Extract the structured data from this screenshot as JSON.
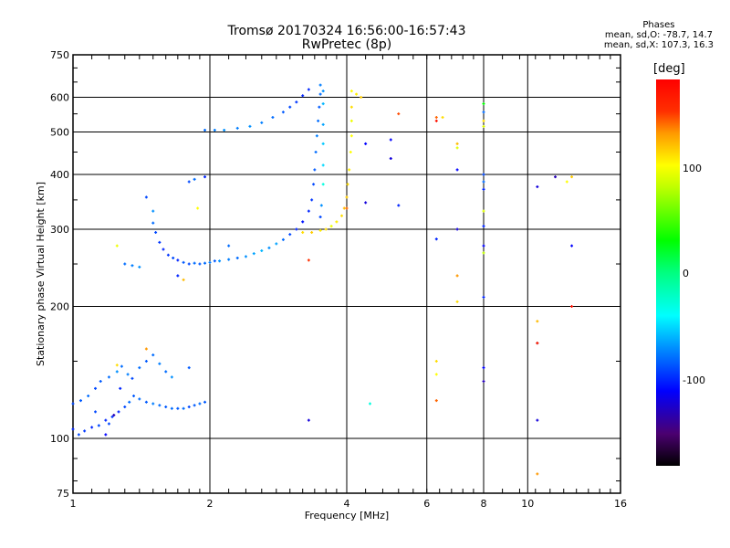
{
  "chart_data": {
    "type": "scatter",
    "title": "Tromsø 20170324 16:56:00-16:57:43",
    "subtitle": "RwPretec (8p)",
    "xlabel": "Frequency [MHz]",
    "ylabel": "Stationary phase Virtual Height [km]",
    "xscale": "log",
    "yscale": "log",
    "xlim": [
      1,
      16
    ],
    "ylim": [
      75,
      750
    ],
    "xticks": [
      "1",
      "2",
      "4",
      "6",
      "8",
      "10",
      "16"
    ],
    "xtick_values": [
      1,
      2,
      4,
      6,
      8,
      10,
      16
    ],
    "yticks": [
      "75",
      "100",
      "200",
      "300",
      "400",
      "500",
      "600",
      "750"
    ],
    "ytick_values": [
      75,
      100,
      200,
      300,
      400,
      500,
      600,
      750
    ],
    "grid": true,
    "colorbar": {
      "label": "[deg]",
      "range": [
        -180,
        180
      ],
      "ticks": [
        "100",
        "0",
        "-100"
      ],
      "tick_values": [
        100,
        0,
        -100
      ]
    },
    "legend_title": "Phases",
    "legend_lines": [
      "mean, sd,O: -78.7, 14.7",
      "mean, sd,X: 107.3, 16.3"
    ],
    "points_format": "[frequency MHz, virtual height km, phase deg]",
    "points": [
      [
        1.5,
        330,
        -70
      ],
      [
        1.5,
        310,
        -80
      ],
      [
        1.52,
        295,
        -90
      ],
      [
        1.55,
        280,
        -95
      ],
      [
        1.58,
        270,
        -100
      ],
      [
        1.62,
        262,
        -95
      ],
      [
        1.66,
        258,
        -90
      ],
      [
        1.7,
        255,
        -100
      ],
      [
        1.75,
        252,
        -85
      ],
      [
        1.8,
        250,
        -90
      ],
      [
        1.85,
        251,
        -80
      ],
      [
        1.9,
        250,
        -85
      ],
      [
        1.95,
        251,
        -80
      ],
      [
        2.0,
        252,
        -75
      ],
      [
        2.05,
        254,
        -85
      ],
      [
        2.1,
        254,
        -70
      ],
      [
        2.2,
        256,
        -75
      ],
      [
        2.3,
        258,
        -80
      ],
      [
        2.4,
        260,
        -70
      ],
      [
        2.5,
        264,
        -65
      ],
      [
        2.6,
        268,
        -60
      ],
      [
        2.7,
        272,
        -70
      ],
      [
        2.8,
        278,
        -65
      ],
      [
        2.9,
        284,
        -80
      ],
      [
        3.0,
        292,
        -90
      ],
      [
        3.1,
        300,
        -100
      ],
      [
        3.2,
        312,
        -105
      ],
      [
        3.3,
        330,
        -100
      ],
      [
        3.35,
        350,
        -95
      ],
      [
        3.38,
        380,
        -90
      ],
      [
        3.4,
        410,
        -85
      ],
      [
        3.42,
        450,
        -80
      ],
      [
        3.44,
        490,
        -75
      ],
      [
        3.46,
        530,
        -80
      ],
      [
        3.48,
        570,
        -85
      ],
      [
        3.5,
        610,
        -80
      ],
      [
        3.5,
        640,
        -75
      ],
      [
        3.55,
        620,
        -70
      ],
      [
        3.55,
        580,
        -60
      ],
      [
        3.55,
        520,
        -65
      ],
      [
        3.55,
        470,
        -55
      ],
      [
        3.55,
        420,
        -50
      ],
      [
        3.55,
        380,
        -30
      ],
      [
        3.52,
        340,
        -70
      ],
      [
        3.5,
        320,
        -90
      ],
      [
        1.3,
        250,
        -80
      ],
      [
        1.35,
        248,
        -75
      ],
      [
        1.4,
        246,
        -70
      ],
      [
        1.7,
        235,
        -100
      ],
      [
        1.75,
        230,
        120
      ],
      [
        1.25,
        275,
        95
      ],
      [
        1.8,
        385,
        -90
      ],
      [
        1.85,
        390,
        -80
      ],
      [
        1.95,
        395,
        -100
      ],
      [
        1.88,
        335,
        100
      ],
      [
        1.45,
        355,
        -90
      ],
      [
        2.2,
        275,
        -80
      ],
      [
        1.95,
        505,
        -80
      ],
      [
        2.05,
        505,
        -75
      ],
      [
        2.15,
        505,
        -70
      ],
      [
        2.3,
        510,
        -75
      ],
      [
        2.45,
        515,
        -70
      ],
      [
        2.6,
        525,
        -75
      ],
      [
        2.75,
        540,
        -80
      ],
      [
        2.9,
        555,
        -85
      ],
      [
        3.0,
        570,
        -90
      ],
      [
        3.1,
        585,
        -95
      ],
      [
        3.2,
        605,
        -100
      ],
      [
        3.3,
        625,
        -100
      ],
      [
        3.2,
        295,
        110
      ],
      [
        3.35,
        295,
        115
      ],
      [
        3.5,
        298,
        105
      ],
      [
        3.6,
        300,
        110
      ],
      [
        3.7,
        305,
        95
      ],
      [
        3.8,
        312,
        105
      ],
      [
        3.9,
        322,
        110
      ],
      [
        3.95,
        335,
        120
      ],
      [
        4.0,
        355,
        115
      ],
      [
        4.02,
        380,
        110
      ],
      [
        4.05,
        410,
        105
      ],
      [
        4.08,
        450,
        100
      ],
      [
        4.1,
        490,
        100
      ],
      [
        4.1,
        530,
        95
      ],
      [
        4.1,
        570,
        110
      ],
      [
        4.1,
        620,
        100
      ],
      [
        4.2,
        610,
        105
      ],
      [
        4.3,
        600,
        115
      ],
      [
        3.3,
        255,
        150
      ],
      [
        4.0,
        335,
        140
      ],
      [
        5.2,
        550,
        145
      ],
      [
        5.0,
        480,
        -110
      ],
      [
        5.0,
        435,
        -120
      ],
      [
        5.2,
        340,
        -100
      ],
      [
        4.4,
        470,
        -110
      ],
      [
        4.4,
        345,
        -120
      ],
      [
        4.5,
        120,
        -30
      ],
      [
        3.3,
        110,
        -120
      ],
      [
        6.3,
        540,
        140
      ],
      [
        6.3,
        530,
        170
      ],
      [
        6.5,
        540,
        110
      ],
      [
        6.3,
        285,
        -100
      ],
      [
        7.0,
        470,
        120
      ],
      [
        7.0,
        460,
        90
      ],
      [
        7.0,
        410,
        -110
      ],
      [
        7.0,
        300,
        -120
      ],
      [
        7.0,
        235,
        130
      ],
      [
        7.0,
        205,
        110
      ],
      [
        6.3,
        150,
        110
      ],
      [
        6.3,
        140,
        100
      ],
      [
        6.3,
        122,
        140
      ],
      [
        8.0,
        580,
        30
      ],
      [
        8.0,
        555,
        -80
      ],
      [
        8.0,
        530,
        110
      ],
      [
        8.0,
        515,
        90
      ],
      [
        8.0,
        400,
        -90
      ],
      [
        8.0,
        385,
        -80
      ],
      [
        8.0,
        370,
        -100
      ],
      [
        8.0,
        330,
        90
      ],
      [
        8.0,
        305,
        -100
      ],
      [
        8.0,
        275,
        -110
      ],
      [
        8.0,
        265,
        80
      ],
      [
        8.0,
        210,
        -100
      ],
      [
        8.0,
        145,
        -110
      ],
      [
        8.0,
        135,
        -130
      ],
      [
        10.5,
        375,
        -120
      ],
      [
        11.5,
        395,
        -130
      ],
      [
        12.2,
        385,
        100
      ],
      [
        12.5,
        395,
        115
      ],
      [
        12.5,
        275,
        -110
      ],
      [
        12.5,
        200,
        170
      ],
      [
        10.5,
        185,
        120
      ],
      [
        10.5,
        165,
        -150
      ],
      [
        10.5,
        165,
        160
      ],
      [
        10.5,
        110,
        -120
      ],
      [
        10.5,
        83,
        130
      ],
      [
        1.0,
        105,
        -100
      ],
      [
        1.03,
        102,
        -90
      ],
      [
        1.06,
        104,
        -95
      ],
      [
        1.1,
        106,
        -100
      ],
      [
        1.14,
        107,
        -90
      ],
      [
        1.18,
        110,
        -100
      ],
      [
        1.22,
        112,
        -95
      ],
      [
        1.26,
        115,
        -100
      ],
      [
        1.3,
        118,
        -90
      ],
      [
        1.33,
        121,
        -80
      ],
      [
        1.36,
        125,
        -85
      ],
      [
        1.4,
        123,
        -80
      ],
      [
        1.45,
        121,
        -85
      ],
      [
        1.5,
        120,
        -75
      ],
      [
        1.55,
        119,
        -80
      ],
      [
        1.6,
        118,
        -85
      ],
      [
        1.65,
        117,
        -80
      ],
      [
        1.7,
        117,
        -85
      ],
      [
        1.75,
        117,
        -80
      ],
      [
        1.8,
        118,
        -90
      ],
      [
        1.85,
        119,
        -85
      ],
      [
        1.9,
        120,
        -80
      ],
      [
        1.95,
        121,
        -85
      ],
      [
        1.0,
        120,
        -90
      ],
      [
        1.04,
        122,
        -85
      ],
      [
        1.08,
        125,
        -80
      ],
      [
        1.12,
        130,
        -90
      ],
      [
        1.15,
        135,
        -85
      ],
      [
        1.2,
        138,
        -80
      ],
      [
        1.25,
        142,
        -70
      ],
      [
        1.28,
        146,
        -80
      ],
      [
        1.32,
        140,
        -75
      ],
      [
        1.35,
        137,
        -90
      ],
      [
        1.4,
        145,
        -80
      ],
      [
        1.45,
        150,
        -85
      ],
      [
        1.5,
        155,
        -80
      ],
      [
        1.55,
        148,
        -75
      ],
      [
        1.6,
        142,
        -80
      ],
      [
        1.65,
        138,
        -70
      ],
      [
        1.8,
        145,
        -85
      ],
      [
        1.25,
        147,
        110
      ],
      [
        1.45,
        160,
        130
      ],
      [
        1.2,
        108,
        -90
      ],
      [
        1.23,
        113,
        -130
      ],
      [
        1.27,
        130,
        -100
      ],
      [
        1.18,
        102,
        -110
      ],
      [
        1.12,
        115,
        -90
      ]
    ]
  }
}
